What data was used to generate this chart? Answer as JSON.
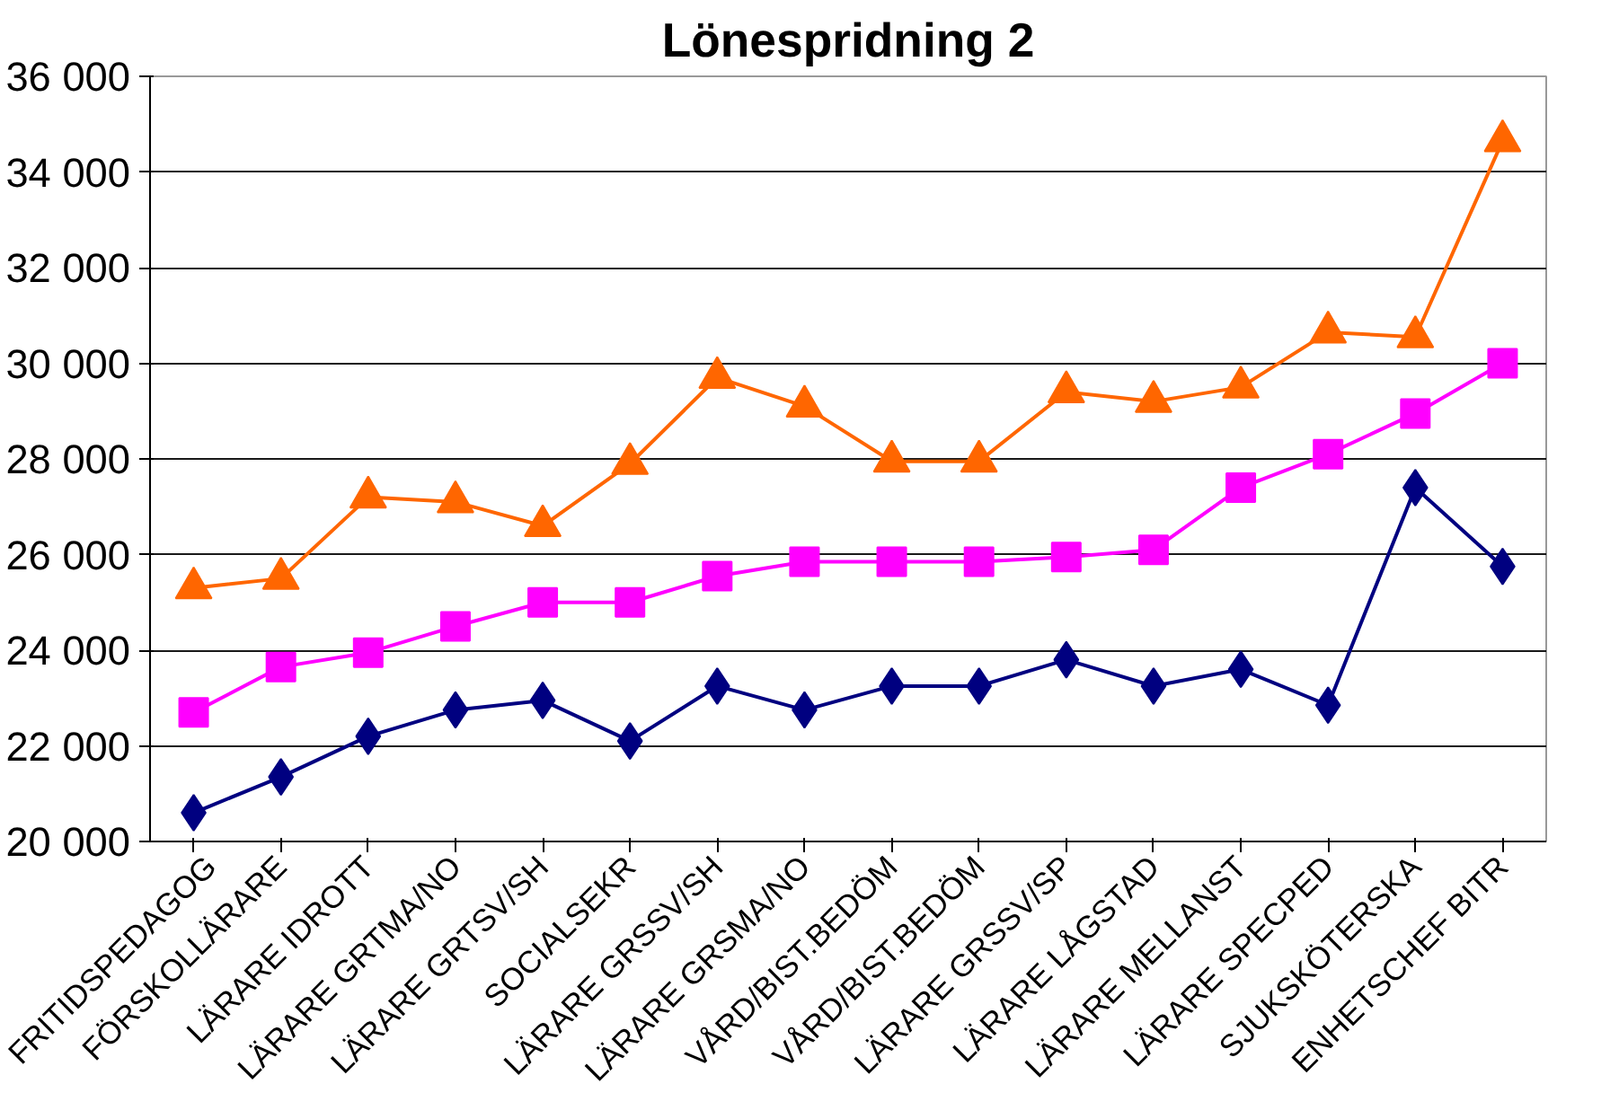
{
  "chart_data": {
    "type": "line",
    "title": "Lönespridning 2",
    "categories": [
      "FRITIDSPEDAGOG",
      "FÖRSKOLLÄRARE",
      "LÄRARE IDROTT",
      "LÄRARE GRTMA/NO",
      "LÄRARE GRTSV/SH",
      "SOCIALSEKR",
      "LÄRARE GRSSV/SH",
      "LÄRARE GRSMA/NO",
      "VÅRD/BIST.BEDÖM",
      "VÅRD/BIST.BEDÖM",
      "LÄRARE GRSSV/SP",
      "LÄRARE LÅGSTAD",
      "LÄRARE MELLANST",
      "LÄRARE SPECPED",
      "SJUKSKÖTERSKA",
      "ENHETSCHEF BITR"
    ],
    "series": [
      {
        "color": "#000080",
        "marker": "diamond",
        "values": [
          20600,
          21350,
          22200,
          22750,
          22950,
          22100,
          23250,
          22750,
          23250,
          23250,
          23800,
          23250,
          23600,
          22850,
          27400,
          25750
        ]
      },
      {
        "color": "#ff00ff",
        "marker": "square",
        "values": [
          22700,
          23650,
          23950,
          24500,
          25000,
          25000,
          25550,
          25850,
          25850,
          25850,
          25950,
          26100,
          27400,
          28100,
          28950,
          30000
        ]
      },
      {
        "color": "#ff6600",
        "marker": "triangle",
        "values": [
          25300,
          25500,
          27200,
          27100,
          26600,
          27900,
          29700,
          29100,
          27950,
          27950,
          29400,
          29200,
          29500,
          30650,
          30550,
          34650
        ]
      }
    ],
    "ylim": [
      20000,
      36000
    ],
    "yticks": [
      {
        "value": 20000,
        "label": "20 000"
      },
      {
        "value": 22000,
        "label": "22 000"
      },
      {
        "value": 24000,
        "label": "24 000"
      },
      {
        "value": 26000,
        "label": "26 000"
      },
      {
        "value": 28000,
        "label": "28 000"
      },
      {
        "value": 30000,
        "label": "30 000"
      },
      {
        "value": 32000,
        "label": "32 000"
      },
      {
        "value": 34000,
        "label": "34 000"
      },
      {
        "value": 36000,
        "label": "36 000"
      }
    ],
    "grid": "y",
    "line_style": "solid"
  }
}
